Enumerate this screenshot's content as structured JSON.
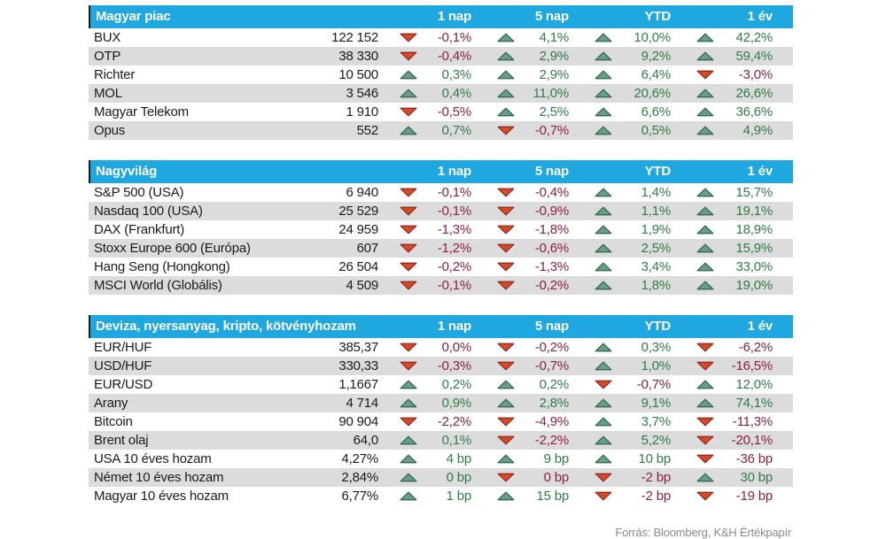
{
  "colors": {
    "header_bg": "#1FA7E0",
    "header_text": "#FFFFFF",
    "header_border": "#1A1A1A",
    "stripe": "#DCDCDC",
    "text": "#1A1A1A",
    "up_text": "#2E7D46",
    "down_text": "#8C2040",
    "up_fill": "#6B9C84",
    "up_stroke": "#2F6B52",
    "down_fill": "#D54A28",
    "down_stroke": "#952B1F",
    "source_text": "#8A8A8A"
  },
  "footer": {
    "source": "Forrás: Bloomberg, K&H Értékpapír"
  },
  "chart_data": [
    {
      "type": "table",
      "title": "Magyar piac",
      "columns": [
        "1 nap",
        "5 nap",
        "YTD",
        "1 év"
      ],
      "rows": [
        {
          "name": "BUX",
          "value": "122 152",
          "changes": [
            {
              "dir": "down",
              "text": "-0,1%"
            },
            {
              "dir": "up",
              "text": "4,1%"
            },
            {
              "dir": "up",
              "text": "10,0%"
            },
            {
              "dir": "up",
              "text": "42,2%"
            }
          ]
        },
        {
          "name": "OTP",
          "value": "38 330",
          "changes": [
            {
              "dir": "down",
              "text": "-0,4%"
            },
            {
              "dir": "up",
              "text": "2,9%"
            },
            {
              "dir": "up",
              "text": "9,2%"
            },
            {
              "dir": "up",
              "text": "59,4%"
            }
          ]
        },
        {
          "name": "Richter",
          "value": "10 500",
          "changes": [
            {
              "dir": "up",
              "text": "0,3%"
            },
            {
              "dir": "up",
              "text": "2,9%"
            },
            {
              "dir": "up",
              "text": "6,4%"
            },
            {
              "dir": "down",
              "text": "-3,0%"
            }
          ]
        },
        {
          "name": "MOL",
          "value": "3 546",
          "changes": [
            {
              "dir": "up",
              "text": "0,4%"
            },
            {
              "dir": "up",
              "text": "11,0%"
            },
            {
              "dir": "up",
              "text": "20,6%"
            },
            {
              "dir": "up",
              "text": "26,6%"
            }
          ]
        },
        {
          "name": "Magyar Telekom",
          "value": "1 910",
          "changes": [
            {
              "dir": "down",
              "text": "-0,5%"
            },
            {
              "dir": "up",
              "text": "2,5%"
            },
            {
              "dir": "up",
              "text": "6,6%"
            },
            {
              "dir": "up",
              "text": "36,6%"
            }
          ]
        },
        {
          "name": "Opus",
          "value": "552",
          "changes": [
            {
              "dir": "up",
              "text": "0,7%"
            },
            {
              "dir": "down",
              "text": "-0,7%"
            },
            {
              "dir": "up",
              "text": "0,5%"
            },
            {
              "dir": "up",
              "text": "4,9%"
            }
          ]
        }
      ]
    },
    {
      "type": "table",
      "title": "Nagyvilág",
      "columns": [
        "1 nap",
        "5 nap",
        "YTD",
        "1 év"
      ],
      "rows": [
        {
          "name": "S&P 500 (USA)",
          "value": "6 940",
          "changes": [
            {
              "dir": "down",
              "text": "-0,1%"
            },
            {
              "dir": "down",
              "text": "-0,4%"
            },
            {
              "dir": "up",
              "text": "1,4%"
            },
            {
              "dir": "up",
              "text": "15,7%"
            }
          ]
        },
        {
          "name": "Nasdaq 100 (USA)",
          "value": "25 529",
          "changes": [
            {
              "dir": "down",
              "text": "-0,1%"
            },
            {
              "dir": "down",
              "text": "-0,9%"
            },
            {
              "dir": "up",
              "text": "1,1%"
            },
            {
              "dir": "up",
              "text": "19,1%"
            }
          ]
        },
        {
          "name": "DAX (Frankfurt)",
          "value": "24 959",
          "changes": [
            {
              "dir": "down",
              "text": "-1,3%"
            },
            {
              "dir": "down",
              "text": "-1,8%"
            },
            {
              "dir": "up",
              "text": "1,9%"
            },
            {
              "dir": "up",
              "text": "18,9%"
            }
          ]
        },
        {
          "name": "Stoxx Europe 600 (Európa)",
          "value": "607",
          "changes": [
            {
              "dir": "down",
              "text": "-1,2%"
            },
            {
              "dir": "down",
              "text": "-0,6%"
            },
            {
              "dir": "up",
              "text": "2,5%"
            },
            {
              "dir": "up",
              "text": "15,9%"
            }
          ]
        },
        {
          "name": "Hang Seng (Hongkong)",
          "value": "26 504",
          "changes": [
            {
              "dir": "down",
              "text": "-0,2%"
            },
            {
              "dir": "down",
              "text": "-1,3%"
            },
            {
              "dir": "up",
              "text": "3,4%"
            },
            {
              "dir": "up",
              "text": "33,0%"
            }
          ]
        },
        {
          "name": "MSCI World (Globális)",
          "value": "4 509",
          "changes": [
            {
              "dir": "down",
              "text": "-0,1%"
            },
            {
              "dir": "down",
              "text": "-0,2%"
            },
            {
              "dir": "up",
              "text": "1,8%"
            },
            {
              "dir": "up",
              "text": "19,0%"
            }
          ]
        }
      ]
    },
    {
      "type": "table",
      "title": "Deviza, nyersanyag, kripto, kötvényhozam",
      "columns": [
        "1 nap",
        "5 nap",
        "YTD",
        "1 év"
      ],
      "rows": [
        {
          "name": "EUR/HUF",
          "value": "385,37",
          "changes": [
            {
              "dir": "down",
              "text": "0,0%"
            },
            {
              "dir": "down",
              "text": "-0,2%"
            },
            {
              "dir": "up",
              "text": "0,3%"
            },
            {
              "dir": "down",
              "text": "-6,2%"
            }
          ]
        },
        {
          "name": "USD/HUF",
          "value": "330,33",
          "changes": [
            {
              "dir": "down",
              "text": "-0,3%"
            },
            {
              "dir": "down",
              "text": "-0,7%"
            },
            {
              "dir": "up",
              "text": "1,0%"
            },
            {
              "dir": "down",
              "text": "-16,5%"
            }
          ]
        },
        {
          "name": "EUR/USD",
          "value": "1,1667",
          "changes": [
            {
              "dir": "up",
              "text": "0,2%"
            },
            {
              "dir": "up",
              "text": "0,2%"
            },
            {
              "dir": "down",
              "text": "-0,7%"
            },
            {
              "dir": "up",
              "text": "12,0%"
            }
          ]
        },
        {
          "name": "Arany",
          "value": "4 714",
          "changes": [
            {
              "dir": "up",
              "text": "0,9%"
            },
            {
              "dir": "up",
              "text": "2,8%"
            },
            {
              "dir": "up",
              "text": "9,1%"
            },
            {
              "dir": "up",
              "text": "74,1%"
            }
          ]
        },
        {
          "name": "Bitcoin",
          "value": "90 904",
          "changes": [
            {
              "dir": "down",
              "text": "-2,2%"
            },
            {
              "dir": "down",
              "text": "-4,9%"
            },
            {
              "dir": "up",
              "text": "3,7%"
            },
            {
              "dir": "down",
              "text": "-11,3%"
            }
          ]
        },
        {
          "name": "Brent olaj",
          "value": "64,0",
          "changes": [
            {
              "dir": "up",
              "text": "0,1%"
            },
            {
              "dir": "down",
              "text": "-2,2%"
            },
            {
              "dir": "up",
              "text": "5,2%"
            },
            {
              "dir": "down",
              "text": "-20,1%"
            }
          ]
        },
        {
          "name": "USA 10 éves hozam",
          "value": "4,27%",
          "changes": [
            {
              "dir": "up",
              "text": "4 bp"
            },
            {
              "dir": "up",
              "text": "9 bp"
            },
            {
              "dir": "up",
              "text": "10 bp"
            },
            {
              "dir": "down",
              "text": "-36 bp"
            }
          ]
        },
        {
          "name": "Német 10 éves hozam",
          "value": "2,84%",
          "changes": [
            {
              "dir": "up",
              "text": "0 bp"
            },
            {
              "dir": "down",
              "text": "0 bp"
            },
            {
              "dir": "down",
              "text": "-2 bp"
            },
            {
              "dir": "up",
              "text": "30 bp"
            }
          ]
        },
        {
          "name": "Magyar 10 éves hozam",
          "value": "6,77%",
          "changes": [
            {
              "dir": "up",
              "text": "1 bp"
            },
            {
              "dir": "up",
              "text": "15 bp"
            },
            {
              "dir": "down",
              "text": "-2 bp"
            },
            {
              "dir": "down",
              "text": "-19 bp"
            }
          ]
        }
      ]
    }
  ]
}
